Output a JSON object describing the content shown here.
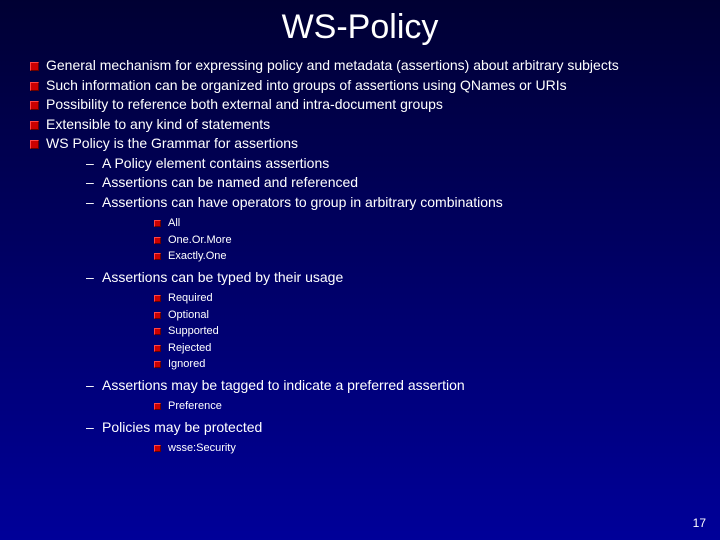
{
  "title": "WS-Policy",
  "page_number": "17",
  "colors": {
    "bg_top": "#000033",
    "bg_mid": "#000066",
    "bg_bottom": "#000099",
    "text": "#ffffff",
    "bullet": "#cc0000"
  },
  "typography": {
    "title_fontsize": 34,
    "body_fontsize": 14,
    "sub_fontsize": 11,
    "font_family": "Arial"
  },
  "bullets": {
    "b1": "General mechanism for expressing policy and metadata (assertions) about arbitrary subjects",
    "b2": "Such information can be organized into groups of assertions using QNames or URIs",
    "b3": "Possibility to reference both external and intra-document groups",
    "b4": "Extensible to any kind of statements",
    "b5": "WS Policy is the Grammar for assertions",
    "b5d1": "A Policy element contains assertions",
    "b5d2": "Assertions can be named and referenced",
    "b5d3": "Assertions can have operators to group in arbitrary combinations",
    "b5d3s1": "All",
    "b5d3s2": "One.Or.More",
    "b5d3s3": "Exactly.One",
    "b5d4": "Assertions can be typed by their usage",
    "b5d4s1": "Required",
    "b5d4s2": "Optional",
    "b5d4s3": "Supported",
    "b5d4s4": "Rejected",
    "b5d4s5": "Ignored",
    "b5d5": "Assertions may be tagged to indicate a preferred assertion",
    "b5d5s1": "Preference",
    "b5d6": "Policies may be protected",
    "b5d6s1": "wsse:Security"
  }
}
